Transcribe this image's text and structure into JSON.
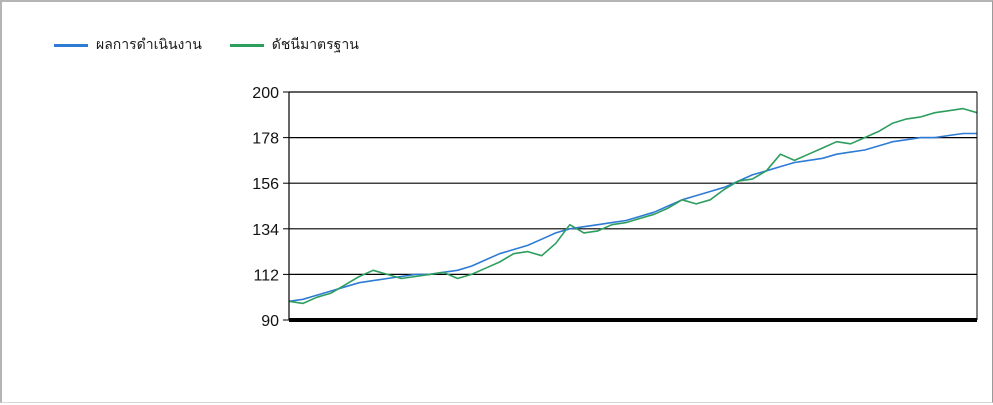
{
  "chart_data": {
    "type": "line",
    "title": "",
    "xlabel": "",
    "ylabel": "",
    "ylim": [
      90,
      200
    ],
    "yticks": [
      90,
      112,
      134,
      156,
      178,
      200
    ],
    "grid": "horizontal",
    "legend_position": "top-left",
    "series": [
      {
        "name": "ผลการดำเนินงาน",
        "color": "#2e7bd6",
        "values": [
          99,
          100,
          102,
          104,
          106,
          108,
          109,
          110,
          111,
          112,
          112,
          113,
          114,
          116,
          119,
          122,
          124,
          126,
          129,
          132,
          134,
          135,
          136,
          137,
          138,
          140,
          142,
          145,
          148,
          150,
          152,
          154,
          157,
          160,
          162,
          164,
          166,
          167,
          168,
          170,
          171,
          172,
          174,
          176,
          177,
          178,
          178,
          179,
          180,
          180
        ]
      },
      {
        "name": "ดัชนีมาตรฐาน",
        "color": "#2e9e5e",
        "values": [
          99,
          98,
          101,
          103,
          107,
          111,
          114,
          112,
          110,
          111,
          112,
          113,
          110,
          112,
          115,
          118,
          122,
          123,
          121,
          127,
          136,
          132,
          133,
          136,
          137,
          139,
          141,
          144,
          148,
          146,
          148,
          153,
          157,
          158,
          162,
          170,
          167,
          170,
          173,
          176,
          175,
          178,
          181,
          185,
          187,
          188,
          190,
          191,
          192,
          190
        ]
      }
    ]
  }
}
